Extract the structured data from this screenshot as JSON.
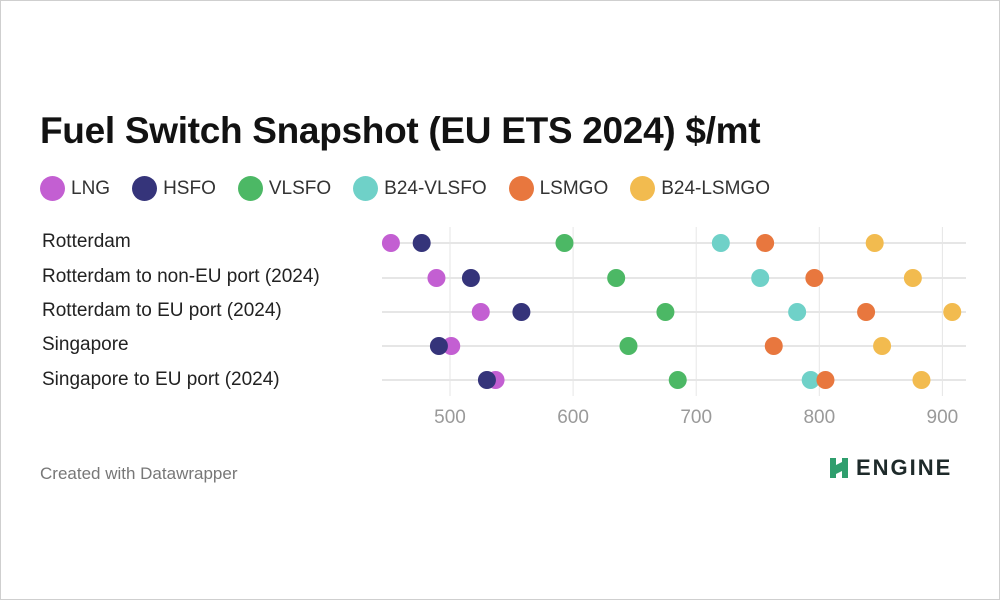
{
  "title": "Fuel Switch Snapshot (EU ETS 2024) $/mt",
  "credit": "Created with Datawrapper",
  "logo_text": "ENGINE",
  "chart_data": {
    "type": "scatter",
    "title": "Fuel Switch Snapshot (EU ETS 2024) $/mt",
    "categories": [
      "Rotterdam",
      "Rotterdam to non-EU port (2024)",
      "Rotterdam to EU port (2024)",
      "Singapore",
      "Singapore to EU port (2024)"
    ],
    "xlim": [
      450,
      920
    ],
    "xticks": [
      500,
      600,
      700,
      800,
      900
    ],
    "grid": true,
    "legend_position": "top",
    "series": [
      {
        "name": "LNG",
        "color": "#c35fd2",
        "values": [
          452,
          489,
          525,
          501,
          537
        ]
      },
      {
        "name": "HSFO",
        "color": "#35347a",
        "values": [
          477,
          517,
          558,
          491,
          530
        ]
      },
      {
        "name": "VLSFO",
        "color": "#4cb865",
        "values": [
          593,
          635,
          675,
          645,
          685
        ]
      },
      {
        "name": "B24-VLSFO",
        "color": "#6fd1c8",
        "values": [
          720,
          752,
          782,
          null,
          793
        ]
      },
      {
        "name": "LSMGO",
        "color": "#e8773e",
        "values": [
          756,
          796,
          838,
          763,
          805
        ]
      },
      {
        "name": "B24-LSMGO",
        "color": "#f2bb4f",
        "values": [
          845,
          876,
          908,
          851,
          883
        ]
      }
    ]
  }
}
